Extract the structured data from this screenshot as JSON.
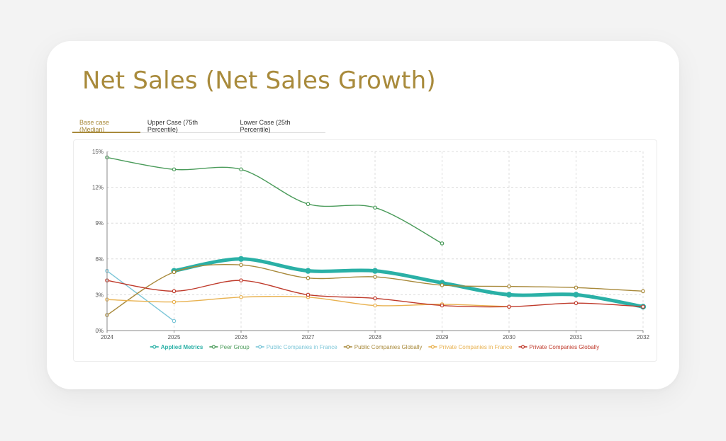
{
  "header": {
    "title": "Net Sales (Net Sales Growth)"
  },
  "tabs": [
    {
      "label": "Base case (Median)",
      "active": true
    },
    {
      "label": "Upper Case (75th Percentile)",
      "active": false
    },
    {
      "label": "Lower Case (25th Percentile)",
      "active": false
    }
  ],
  "chart_data": {
    "type": "line",
    "title": "Net Sales (Net Sales Growth)",
    "xlabel": "",
    "ylabel": "",
    "x": [
      "2024",
      "2025",
      "2026",
      "2027",
      "2028",
      "2029",
      "2030",
      "2031",
      "2032"
    ],
    "ylim": [
      0,
      15
    ],
    "yticks": [
      0,
      3,
      6,
      9,
      12,
      15
    ],
    "ytick_labels": [
      "0%",
      "3%",
      "6%",
      "9%",
      "12%",
      "15%"
    ],
    "grid": true,
    "legend_position": "bottom",
    "series": [
      {
        "name": "Applied Metrics",
        "color": "#2ab0a6",
        "emphasis": true,
        "values": [
          null,
          5.0,
          6.0,
          5.0,
          5.0,
          4.0,
          3.0,
          3.0,
          2.0
        ]
      },
      {
        "name": "Peer Group",
        "color": "#4a9b5a",
        "values": [
          14.5,
          13.5,
          13.5,
          10.6,
          10.3,
          7.3,
          null,
          null,
          null
        ]
      },
      {
        "name": "Public Companies in France",
        "color": "#7cc6d8",
        "values": [
          5.0,
          0.8,
          null,
          null,
          null,
          null,
          null,
          null,
          null
        ]
      },
      {
        "name": "Public Companies Globally",
        "color": "#a8893a",
        "values": [
          1.3,
          4.9,
          5.5,
          4.4,
          4.5,
          3.8,
          3.7,
          3.6,
          3.3
        ]
      },
      {
        "name": "Private Companies in France",
        "color": "#e8b14f",
        "values": [
          2.6,
          2.4,
          2.8,
          2.8,
          2.1,
          2.2,
          2.0,
          null,
          null
        ]
      },
      {
        "name": "Private Companies Globally",
        "color": "#bf3a2b",
        "values": [
          4.2,
          3.3,
          4.2,
          3.0,
          2.7,
          2.1,
          2.0,
          2.3,
          2.0
        ]
      }
    ]
  }
}
